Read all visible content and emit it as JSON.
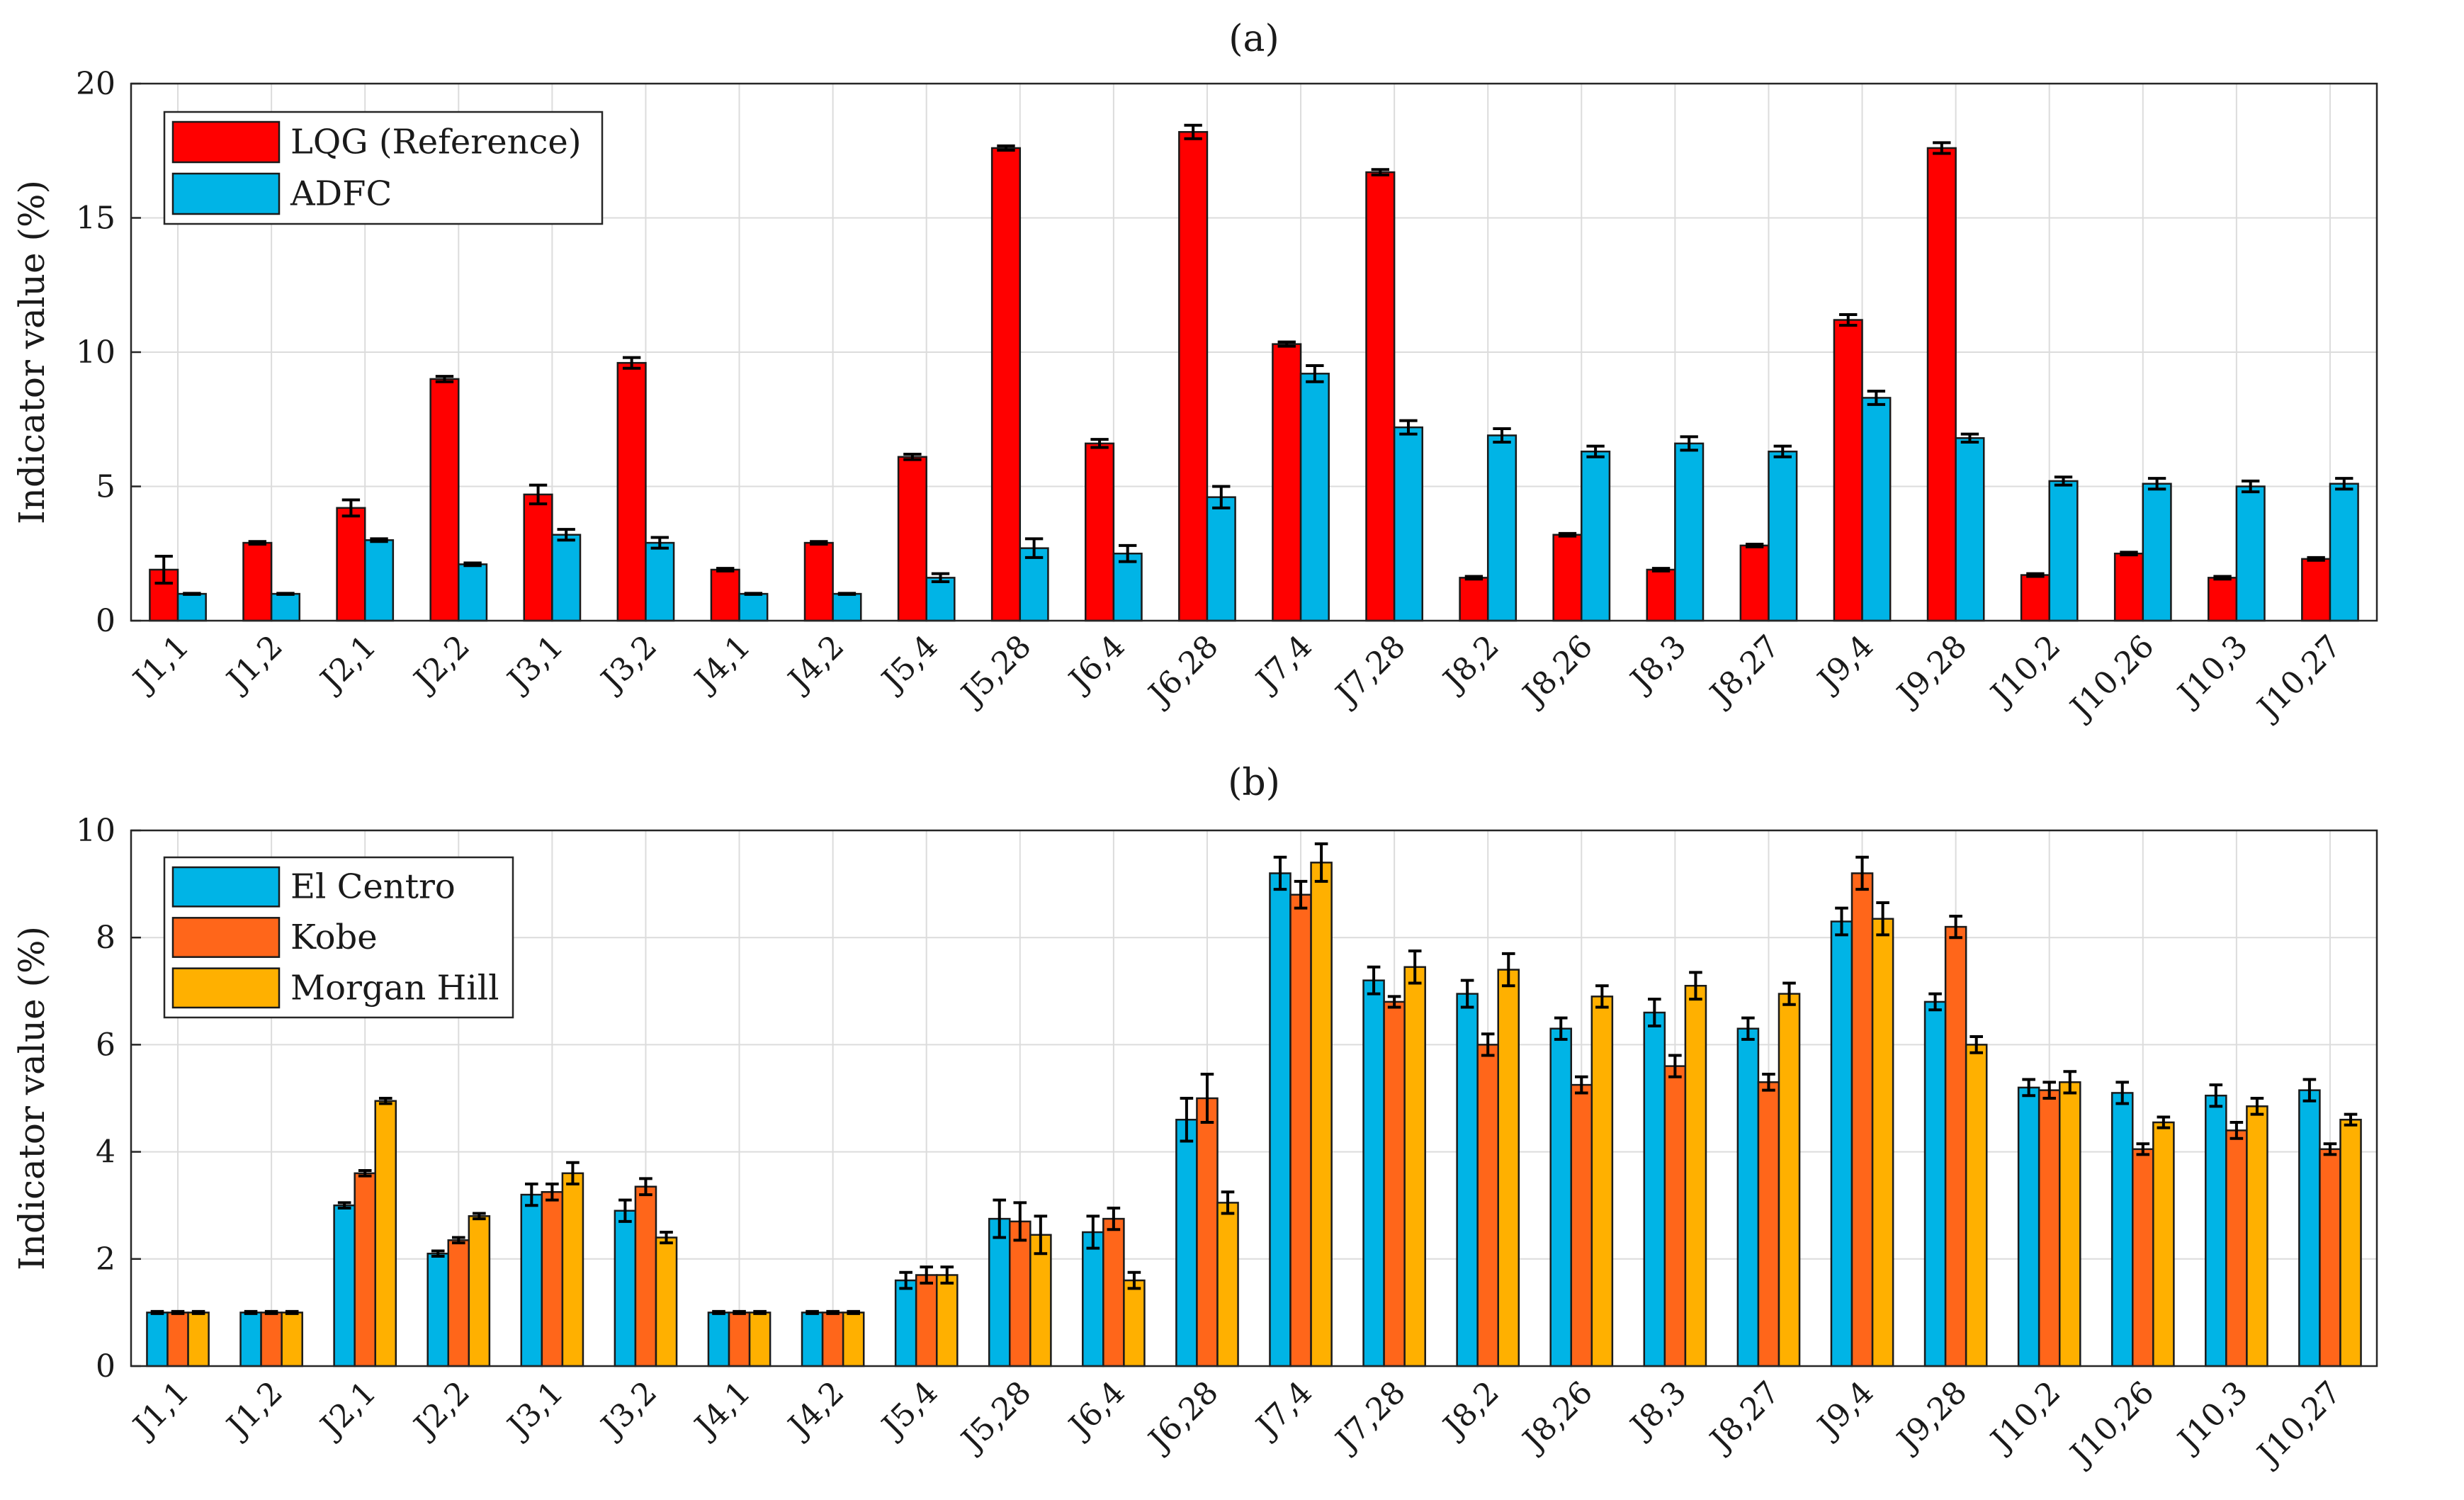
{
  "chart_data": [
    {
      "type": "bar",
      "title": "(a)",
      "xlabel": "",
      "ylabel": "Indicator value (%)",
      "ylim": [
        0,
        20
      ],
      "yticks": [
        0,
        5,
        10,
        15,
        20
      ],
      "grid": true,
      "legend_position": "top-left",
      "categories": [
        "J1,1",
        "J1,2",
        "J2,1",
        "J2,2",
        "J3,1",
        "J3,2",
        "J4,1",
        "J4,2",
        "J5,4",
        "J5,28",
        "J6,4",
        "J6,28",
        "J7,4",
        "J7,28",
        "J8,2",
        "J8,26",
        "J8,3",
        "J8,27",
        "J9,4",
        "J9,28",
        "J10,2",
        "J10,26",
        "J10,3",
        "J10,27"
      ],
      "series": [
        {
          "name": "LQG (Reference)",
          "color": "#ff0000",
          "values": [
            1.9,
            2.9,
            4.2,
            9.0,
            4.7,
            9.6,
            1.9,
            2.9,
            6.1,
            17.6,
            6.6,
            18.2,
            10.3,
            16.7,
            1.6,
            3.2,
            1.9,
            2.8,
            11.2,
            17.6,
            1.7,
            2.5,
            1.6,
            2.3
          ],
          "errors": [
            0.5,
            0.05,
            0.3,
            0.1,
            0.35,
            0.2,
            0.05,
            0.05,
            0.1,
            0.08,
            0.15,
            0.25,
            0.08,
            0.1,
            0.05,
            0.05,
            0.05,
            0.05,
            0.2,
            0.2,
            0.05,
            0.05,
            0.05,
            0.05
          ]
        },
        {
          "name": "ADFC",
          "color": "#00b4e6",
          "values": [
            1.0,
            1.0,
            3.0,
            2.1,
            3.2,
            2.9,
            1.0,
            1.0,
            1.6,
            2.7,
            2.5,
            4.6,
            9.2,
            7.2,
            6.9,
            6.3,
            6.6,
            6.3,
            8.3,
            6.8,
            5.2,
            5.1,
            5.0,
            5.1
          ],
          "errors": [
            0.02,
            0.02,
            0.05,
            0.05,
            0.2,
            0.2,
            0.02,
            0.02,
            0.15,
            0.35,
            0.3,
            0.4,
            0.3,
            0.25,
            0.25,
            0.2,
            0.25,
            0.2,
            0.25,
            0.15,
            0.15,
            0.2,
            0.2,
            0.2
          ]
        }
      ]
    },
    {
      "type": "bar",
      "title": "(b)",
      "xlabel": "",
      "ylabel": "Indicator value (%)",
      "ylim": [
        0,
        10
      ],
      "yticks": [
        0,
        2,
        4,
        6,
        8,
        10
      ],
      "grid": true,
      "legend_position": "top-left",
      "categories": [
        "J1,1",
        "J1,2",
        "J2,1",
        "J2,2",
        "J3,1",
        "J3,2",
        "J4,1",
        "J4,2",
        "J5,4",
        "J5,28",
        "J6,4",
        "J6,28",
        "J7,4",
        "J7,28",
        "J8,2",
        "J8,26",
        "J8,3",
        "J8,27",
        "J9,4",
        "J9,28",
        "J10,2",
        "J10,26",
        "J10,3",
        "J10,27"
      ],
      "series": [
        {
          "name": "El Centro",
          "color": "#00b4e6",
          "values": [
            1.0,
            1.0,
            3.0,
            2.1,
            3.2,
            2.9,
            1.0,
            1.0,
            1.6,
            2.75,
            2.5,
            4.6,
            9.2,
            7.2,
            6.95,
            6.3,
            6.6,
            6.3,
            8.3,
            6.8,
            5.2,
            5.1,
            5.05,
            5.15
          ],
          "errors": [
            0.02,
            0.02,
            0.05,
            0.05,
            0.2,
            0.2,
            0.02,
            0.02,
            0.15,
            0.35,
            0.3,
            0.4,
            0.3,
            0.25,
            0.25,
            0.2,
            0.25,
            0.2,
            0.25,
            0.15,
            0.15,
            0.2,
            0.2,
            0.2
          ]
        },
        {
          "name": "Kobe",
          "color": "#ff661a",
          "values": [
            1.0,
            1.0,
            3.6,
            2.35,
            3.25,
            3.35,
            1.0,
            1.0,
            1.7,
            2.7,
            2.75,
            5.0,
            8.8,
            6.8,
            6.0,
            5.25,
            5.6,
            5.3,
            9.2,
            8.2,
            5.15,
            4.05,
            4.4,
            4.05
          ],
          "errors": [
            0.02,
            0.02,
            0.05,
            0.05,
            0.15,
            0.15,
            0.02,
            0.02,
            0.15,
            0.35,
            0.2,
            0.45,
            0.25,
            0.1,
            0.2,
            0.15,
            0.2,
            0.15,
            0.3,
            0.2,
            0.15,
            0.1,
            0.15,
            0.1
          ]
        },
        {
          "name": "Morgan Hill",
          "color": "#ffb000",
          "values": [
            1.0,
            1.0,
            4.95,
            2.8,
            3.6,
            2.4,
            1.0,
            1.0,
            1.7,
            2.45,
            1.6,
            3.05,
            9.4,
            7.45,
            7.4,
            6.9,
            7.1,
            6.95,
            8.35,
            6.0,
            5.3,
            4.55,
            4.85,
            4.6
          ],
          "errors": [
            0.02,
            0.02,
            0.05,
            0.05,
            0.2,
            0.1,
            0.02,
            0.02,
            0.15,
            0.35,
            0.15,
            0.2,
            0.35,
            0.3,
            0.3,
            0.2,
            0.25,
            0.2,
            0.3,
            0.15,
            0.2,
            0.1,
            0.15,
            0.1
          ]
        }
      ]
    }
  ]
}
